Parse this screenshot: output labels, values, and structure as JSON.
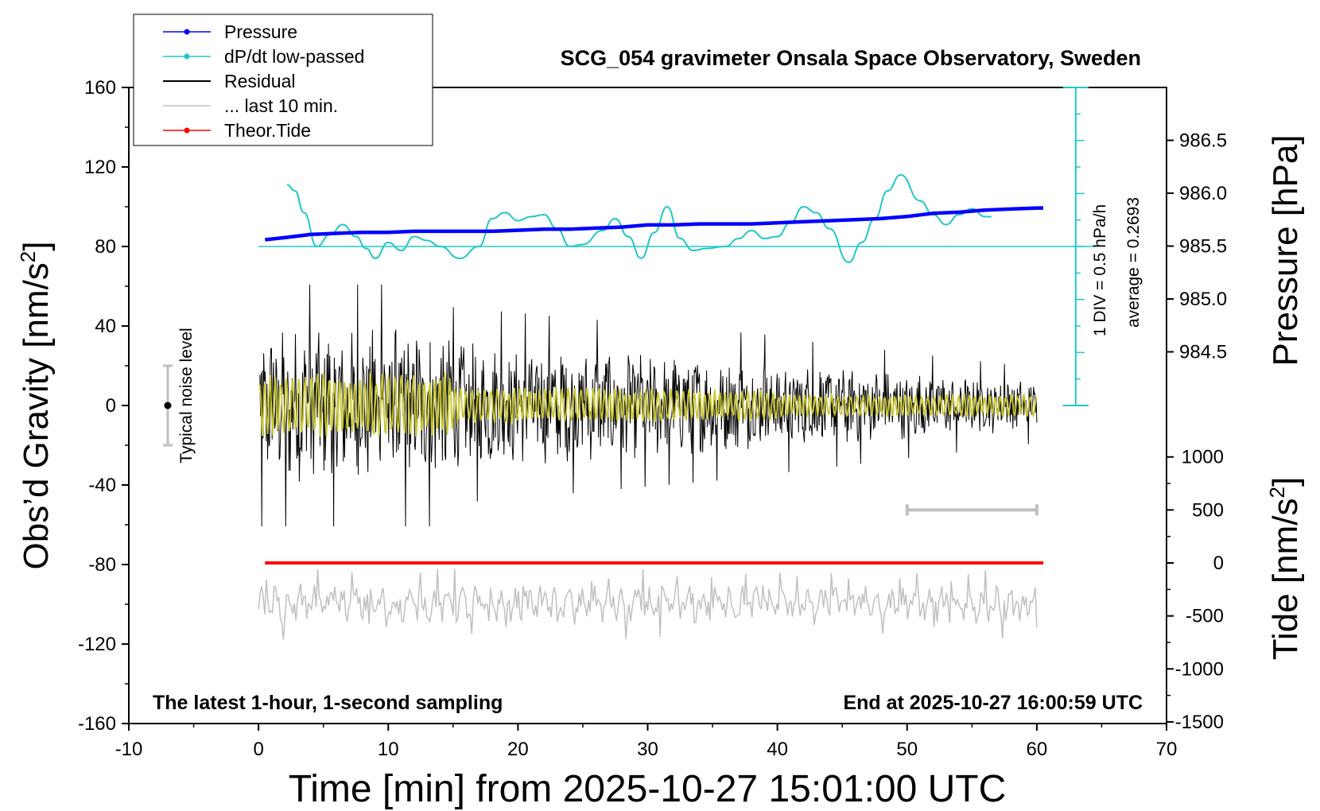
{
  "chart_data": {
    "type": "line",
    "title": "SCG_054 gravimeter Onsala Space Observatory, Sweden",
    "xlabel": "Time [min] from 2025-10-27 15:01:00 UTC",
    "ylabel_left": "Obs’d Gravity [nm/s",
    "ylabel_left_sup": "2",
    "ylabel_left_end": "]",
    "ylabel_right_top": "Pressure [hPa]",
    "ylabel_right_bottom": "Tide [nm/s",
    "ylabel_right_bottom_sup": "2",
    "ylabel_right_bottom_end": "]",
    "xlim": [
      -10,
      70
    ],
    "ylim_left": [
      -160,
      160
    ],
    "xticks": [
      -10,
      0,
      10,
      20,
      30,
      40,
      50,
      60,
      70
    ],
    "yticks_left": [
      -160,
      -120,
      -80,
      -40,
      0,
      40,
      80,
      120,
      160
    ],
    "pressure_ticks": [
      984.5,
      985.0,
      985.5,
      986.0,
      986.5
    ],
    "pressure_tick_labels": [
      "984.5",
      "985.0",
      "985.5",
      "986.0",
      "986.5"
    ],
    "tide_ticks": [
      -1500,
      -1000,
      -500,
      0,
      500,
      1000
    ],
    "annotations": {
      "bottom_left": "The latest 1-hour, 1-second sampling",
      "bottom_right": "End at 2025-10-27 16:00:59 UTC",
      "noise": "Typical noise level",
      "div": "1 DIV = 0.5 hPa/h",
      "average": "average = 0.2693"
    },
    "legend": [
      {
        "label": "Pressure",
        "color": "#0000ff",
        "marker": true
      },
      {
        "label": "dP/dt low-passed",
        "color": "#20c8c8",
        "marker": true
      },
      {
        "label": "Residual",
        "color": "#000000",
        "marker": false
      },
      {
        "label": "... last 10 min.",
        "color": "#c0c0c0",
        "marker": false
      },
      {
        "label": "Theor.Tide",
        "color": "#ff0000",
        "marker": true
      }
    ],
    "colors": {
      "pressure": "#0000ff",
      "dpdt": "#20c8c8",
      "residual": "#000000",
      "residual_filtered": "#c8c832",
      "last10": "#c0c0c0",
      "tide": "#ff0000"
    },
    "series": [
      {
        "name": "Pressure",
        "axis": "pressure",
        "x": [
          0.5,
          2,
          4,
          6,
          8,
          10,
          12,
          14,
          16,
          18,
          20,
          22,
          24,
          26,
          28,
          30,
          32,
          34,
          36,
          38,
          40,
          42,
          44,
          46,
          48,
          50,
          52,
          54,
          56,
          58,
          60,
          60.5
        ],
        "y": [
          985.56,
          985.58,
          985.61,
          985.62,
          985.63,
          985.63,
          985.64,
          985.64,
          985.64,
          985.64,
          985.65,
          985.66,
          985.66,
          985.67,
          985.68,
          985.7,
          985.7,
          985.71,
          985.71,
          985.71,
          985.72,
          985.73,
          985.74,
          985.75,
          985.76,
          985.78,
          985.81,
          985.82,
          985.84,
          985.85,
          985.86,
          985.86
        ]
      },
      {
        "name": "dP/dt low-passed",
        "axis": "gravity",
        "x": [
          2.2,
          2.8,
          3.5,
          4.5,
          5.5,
          6.5,
          7.5,
          8.3,
          9.0,
          10.0,
          11.0,
          12.0,
          13.0,
          14.0,
          15.5,
          17.0,
          18.0,
          19.0,
          20.0,
          21.0,
          22.0,
          23.0,
          24.0,
          25.0,
          26.5,
          27.5,
          28.5,
          29.5,
          30.5,
          31.5,
          32.5,
          33.5,
          34.5,
          36.0,
          37.0,
          38.0,
          39.0,
          40.0,
          41.0,
          42.0,
          43.0,
          44.0,
          45.5,
          46.5,
          47.5,
          48.5,
          49.5,
          51.0,
          52.0,
          53.0,
          54.0,
          55.0,
          56.0,
          56.5
        ],
        "y": [
          111,
          108,
          97,
          80,
          86,
          91,
          85,
          79,
          74,
          82,
          78,
          85,
          83,
          80,
          74,
          80,
          94,
          97,
          93,
          95,
          96,
          89,
          80,
          81,
          88,
          94,
          85,
          74,
          87,
          100,
          84,
          78,
          79,
          80,
          84,
          88,
          84,
          85,
          92,
          100,
          97,
          89,
          72,
          82,
          94,
          108,
          116,
          103,
          96,
          91,
          96,
          99,
          95,
          95
        ]
      },
      {
        "name": "Residual",
        "axis": "gravity",
        "generated": "dense 1-second samples",
        "range": [
          -67,
          65
        ]
      },
      {
        "name": "Theor.Tide",
        "axis": "tide",
        "x": [
          0.5,
          60.5
        ],
        "y": [
          0,
          0
        ]
      }
    ],
    "noise_bar": {
      "x": -7,
      "y": [
        -20,
        20
      ]
    },
    "div_axis": {
      "x": 63,
      "pressure_range": [
        0,
        160
      ]
    },
    "grey_bar": {
      "x": [
        50,
        60
      ],
      "tide_value": 500
    }
  }
}
